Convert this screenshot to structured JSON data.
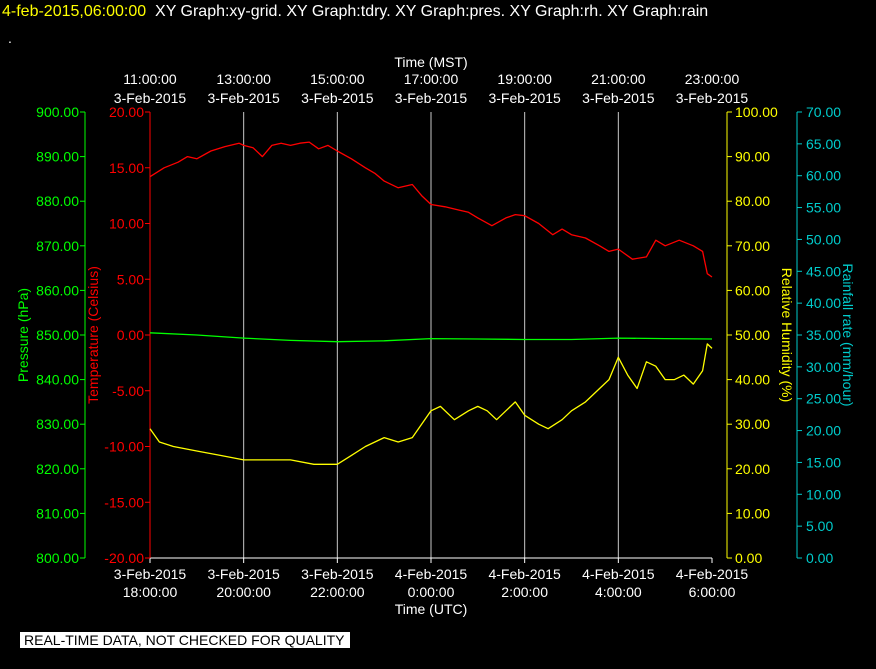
{
  "header": {
    "timestamp": "4-feb-2015,06:00:00",
    "graphs": "XY Graph:xy-grid.  XY Graph:tdry.  XY Graph:pres.  XY Graph:rh.  XY Graph:rain",
    "second_line": "."
  },
  "footer": {
    "notice": "REAL-TIME DATA, NOT CHECKED FOR QUALITY"
  },
  "colors": {
    "pressure": "#00ff00",
    "temperature": "#ff0000",
    "humidity": "#ffff00",
    "rain": "#00cccc",
    "grid": "#c8c8c8",
    "text": "#ffffff"
  },
  "chart_data": {
    "type": "line",
    "x_unit": "hours after 3-Feb-2015 18:00 UTC",
    "xlim": [
      0,
      12
    ],
    "grid": true,
    "top_axis": {
      "label": "Time (MST)",
      "ticks": [
        {
          "x": 0,
          "time": "11:00:00",
          "date": "3-Feb-2015"
        },
        {
          "x": 2,
          "time": "13:00:00",
          "date": "3-Feb-2015"
        },
        {
          "x": 4,
          "time": "15:00:00",
          "date": "3-Feb-2015"
        },
        {
          "x": 6,
          "time": "17:00:00",
          "date": "3-Feb-2015"
        },
        {
          "x": 8,
          "time": "19:00:00",
          "date": "3-Feb-2015"
        },
        {
          "x": 10,
          "time": "21:00:00",
          "date": "3-Feb-2015"
        },
        {
          "x": 12,
          "time": "23:00:00",
          "date": "3-Feb-2015"
        }
      ]
    },
    "bottom_axis": {
      "label": "Time (UTC)",
      "ticks": [
        {
          "x": 0,
          "date": "3-Feb-2015",
          "time": "18:00:00"
        },
        {
          "x": 2,
          "date": "3-Feb-2015",
          "time": "20:00:00"
        },
        {
          "x": 4,
          "date": "3-Feb-2015",
          "time": "22:00:00"
        },
        {
          "x": 6,
          "date": "4-Feb-2015",
          "time": "0:00:00"
        },
        {
          "x": 8,
          "date": "4-Feb-2015",
          "time": "2:00:00"
        },
        {
          "x": 10,
          "date": "4-Feb-2015",
          "time": "4:00:00"
        },
        {
          "x": 12,
          "date": "4-Feb-2015",
          "time": "6:00:00"
        }
      ]
    },
    "axes": {
      "pressure": {
        "label": "Pressure (hPa)",
        "ylim": [
          800,
          900
        ],
        "ticks": [
          "900.00",
          "890.00",
          "880.00",
          "870.00",
          "860.00",
          "850.00",
          "840.00",
          "830.00",
          "820.00",
          "810.00",
          "800.00"
        ]
      },
      "temperature": {
        "label": "Temperature (Celsius)",
        "ylim": [
          -20,
          20
        ],
        "ticks": [
          "20.00",
          "15.00",
          "10.00",
          "5.00",
          "0.00",
          "-5.00",
          "-10.00",
          "-15.00",
          "-20.00"
        ]
      },
      "humidity": {
        "label": "Relative Humidity (%)",
        "ylim": [
          0,
          100
        ],
        "ticks": [
          "100.00",
          "90.00",
          "80.00",
          "70.00",
          "60.00",
          "50.00",
          "40.00",
          "30.00",
          "20.00",
          "10.00",
          "0.00"
        ]
      },
      "rain": {
        "label": "Rainfall rate (mm/hour)",
        "ylim": [
          0,
          70
        ],
        "ticks": [
          "70.00",
          "65.00",
          "60.00",
          "55.00",
          "50.00",
          "45.00",
          "40.00",
          "35.00",
          "30.00",
          "25.00",
          "20.00",
          "15.00",
          "10.00",
          "5.00",
          "0.00"
        ]
      }
    },
    "series": [
      {
        "axis": "temperature",
        "x": [
          0,
          0.3,
          0.6,
          0.8,
          1.0,
          1.3,
          1.6,
          1.9,
          2.0,
          2.2,
          2.4,
          2.6,
          2.8,
          3.0,
          3.2,
          3.4,
          3.6,
          3.8,
          4.0,
          4.3,
          4.6,
          4.8,
          5.0,
          5.3,
          5.6,
          5.8,
          6.0,
          6.3,
          6.6,
          6.8,
          7.0,
          7.3,
          7.6,
          7.8,
          8.0,
          8.3,
          8.6,
          8.8,
          9.0,
          9.3,
          9.6,
          9.8,
          10.0,
          10.3,
          10.6,
          10.8,
          11.0,
          11.3,
          11.6,
          11.8,
          11.9,
          12.0
        ],
        "y": [
          14.2,
          15.0,
          15.5,
          16.0,
          15.8,
          16.5,
          16.9,
          17.2,
          17.0,
          16.8,
          16.0,
          17.0,
          17.2,
          17.0,
          17.2,
          17.3,
          16.7,
          17.0,
          16.5,
          15.8,
          15.0,
          14.5,
          13.8,
          13.2,
          13.5,
          12.5,
          11.7,
          11.5,
          11.2,
          11.0,
          10.5,
          9.8,
          10.5,
          10.8,
          10.7,
          10.0,
          9.0,
          9.5,
          9.0,
          8.7,
          8.0,
          7.5,
          7.7,
          6.8,
          7.0,
          8.5,
          8.0,
          8.5,
          8.0,
          7.5,
          5.5,
          5.2
        ]
      },
      {
        "axis": "pressure",
        "x": [
          0,
          1,
          2,
          3,
          4,
          5,
          6,
          7,
          8,
          9,
          10,
          11,
          12
        ],
        "y": [
          850.5,
          850.0,
          849.3,
          848.8,
          848.5,
          848.7,
          849.2,
          849.1,
          849.0,
          849.0,
          849.3,
          849.2,
          849.1
        ]
      },
      {
        "axis": "humidity",
        "x": [
          0,
          0.2,
          0.5,
          1.0,
          1.5,
          2.0,
          2.5,
          3.0,
          3.5,
          4.0,
          4.3,
          4.6,
          5.0,
          5.3,
          5.6,
          5.8,
          6.0,
          6.2,
          6.5,
          6.8,
          7.0,
          7.2,
          7.4,
          7.6,
          7.8,
          8.0,
          8.3,
          8.5,
          8.8,
          9.0,
          9.3,
          9.6,
          9.8,
          10.0,
          10.2,
          10.4,
          10.6,
          10.8,
          11.0,
          11.2,
          11.4,
          11.6,
          11.8,
          11.9,
          12.0
        ],
        "y": [
          29,
          26,
          25,
          24,
          23,
          22,
          22,
          22,
          21,
          21,
          23,
          25,
          27,
          26,
          27,
          30,
          33,
          34,
          31,
          33,
          34,
          33,
          31,
          33,
          35,
          32,
          30,
          29,
          31,
          33,
          35,
          38,
          40,
          45,
          41,
          38,
          44,
          43,
          40,
          40,
          41,
          39,
          42,
          48,
          47
        ]
      },
      {
        "axis": "rain",
        "x": [],
        "y": []
      }
    ]
  }
}
